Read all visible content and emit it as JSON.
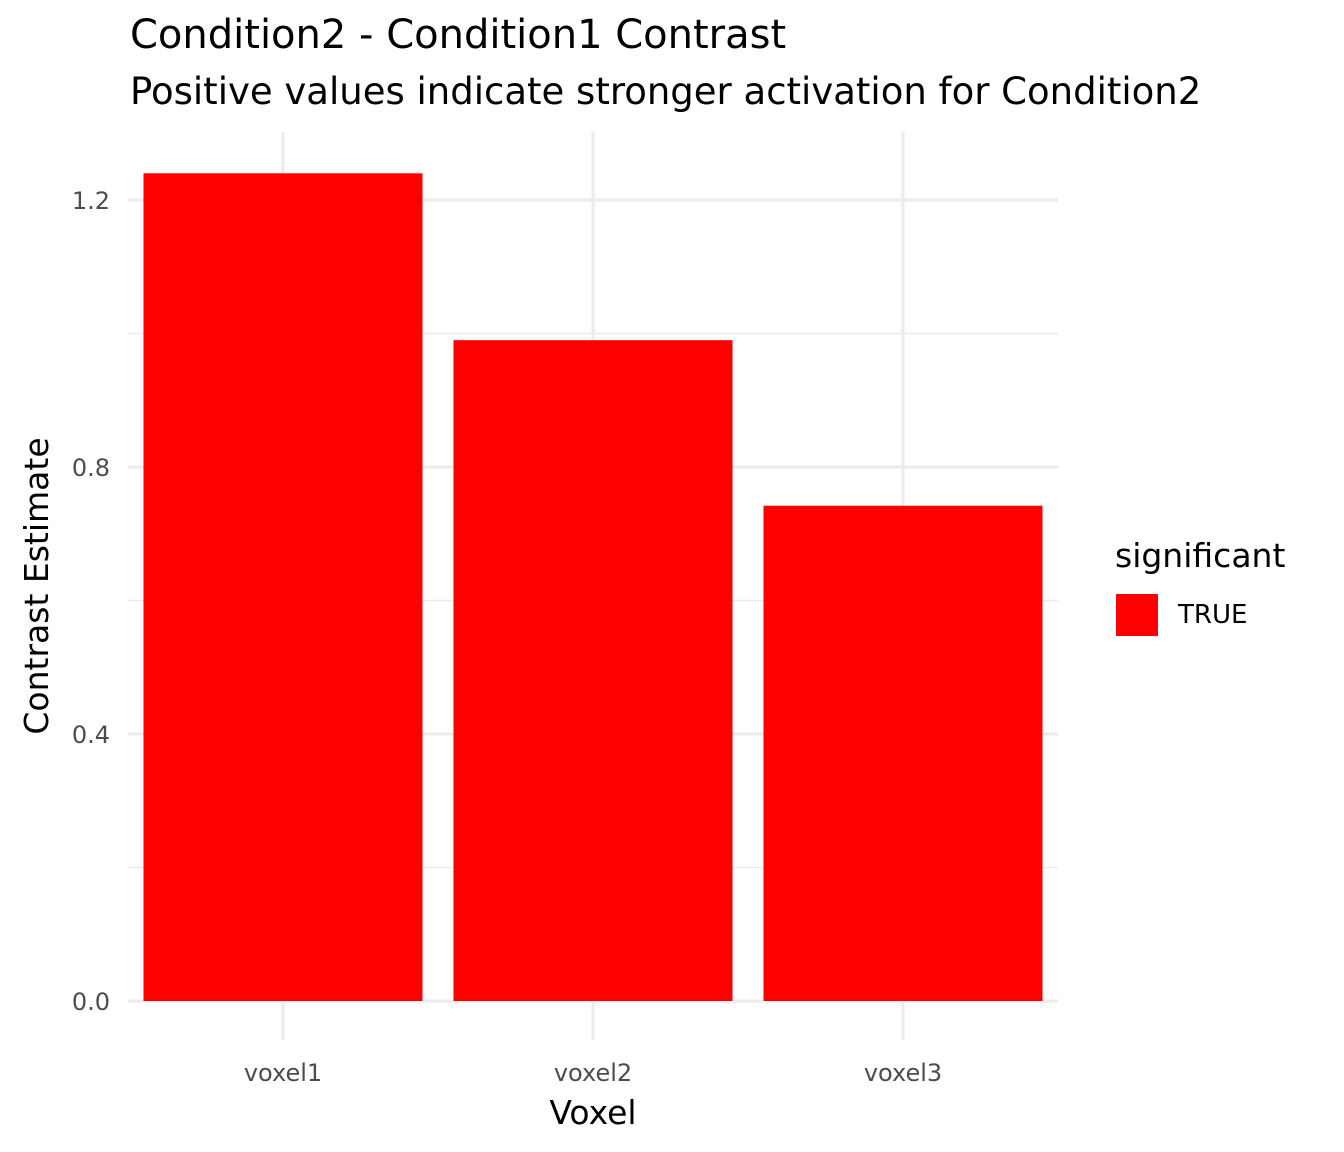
{
  "chart_data": {
    "type": "bar",
    "title": "Condition2 - Condition1 Contrast",
    "subtitle": "Positive values indicate stronger activation for Condition2",
    "xlabel": "Voxel",
    "ylabel": "Contrast Estimate",
    "categories": [
      "voxel1",
      "voxel2",
      "voxel3"
    ],
    "values": [
      1.24,
      0.99,
      0.742
    ],
    "fill": [
      "TRUE",
      "TRUE",
      "TRUE"
    ],
    "ylim": [
      -0.06,
      1.3
    ],
    "yticks": [
      "0.0",
      "0.4",
      "0.8",
      "1.2"
    ],
    "ytick_values": [
      0,
      0.4,
      0.8,
      1.2
    ],
    "grid": true,
    "legend": {
      "title": "significant",
      "entries": [
        {
          "label": "TRUE",
          "color": "#FF0000"
        }
      ],
      "position": "right"
    },
    "colors": {
      "bar": "#FF0000",
      "grid": "#EBEBEB"
    }
  }
}
